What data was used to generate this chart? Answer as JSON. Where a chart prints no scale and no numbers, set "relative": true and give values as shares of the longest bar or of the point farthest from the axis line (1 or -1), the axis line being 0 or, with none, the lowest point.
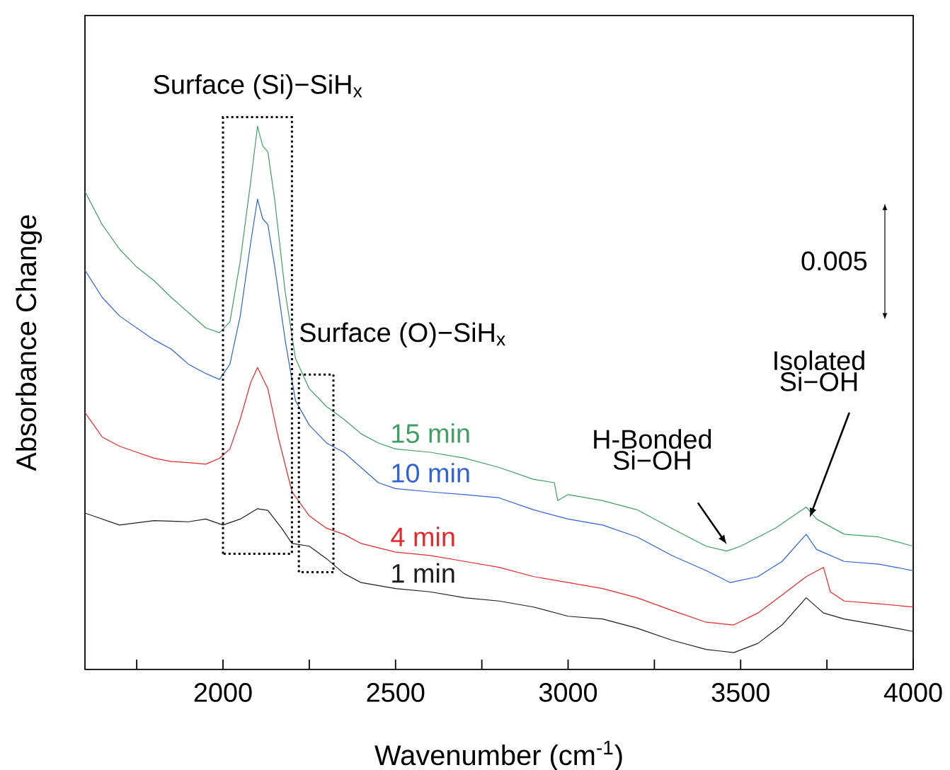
{
  "chart_data": {
    "type": "line",
    "relative": true,
    "xlabel": "Wavenumber (cm$^{-1}$)",
    "ylabel": "Absorbance Change",
    "xlim": [
      1600,
      4000
    ],
    "xticks": [
      {
        "value": 1750,
        "label": null
      },
      2000,
      {
        "value": 2250,
        "label": null
      },
      2500,
      {
        "value": 2750,
        "label": null
      },
      3000,
      {
        "value": 3250,
        "label": null
      },
      3500,
      {
        "value": 3750,
        "label": null
      },
      4000
    ],
    "tick_labels": "x",
    "series": [
      {
        "name": "15 min",
        "color": "#3f9f62",
        "x": [
          1600,
          1650,
          1700,
          1750,
          1800,
          1850,
          1900,
          1950,
          1990,
          2020,
          2050,
          2080,
          2100,
          2115,
          2130,
          2150,
          2180,
          2210,
          2250,
          2300,
          2350,
          2400,
          2450,
          2500,
          2600,
          2700,
          2800,
          2900,
          2960,
          2970,
          3000,
          3100,
          3200,
          3300,
          3400,
          3460,
          3500,
          3600,
          3690,
          3720,
          3800,
          3900,
          4000
        ],
        "values": [
          0.88,
          0.819,
          0.774,
          0.741,
          0.716,
          0.685,
          0.657,
          0.629,
          0.62,
          0.64,
          0.752,
          0.897,
          1.0,
          0.964,
          0.953,
          0.864,
          0.696,
          0.573,
          0.517,
          0.484,
          0.461,
          0.434,
          0.417,
          0.406,
          0.4,
          0.389,
          0.372,
          0.35,
          0.344,
          0.311,
          0.322,
          0.311,
          0.294,
          0.26,
          0.227,
          0.218,
          0.227,
          0.26,
          0.299,
          0.277,
          0.249,
          0.244,
          0.227
        ]
      },
      {
        "name": "10 min",
        "color": "#2f62d6",
        "x": [
          1600,
          1650,
          1700,
          1750,
          1800,
          1850,
          1900,
          1950,
          1990,
          2020,
          2050,
          2080,
          2100,
          2115,
          2130,
          2150,
          2180,
          2210,
          2250,
          2300,
          2350,
          2400,
          2450,
          2500,
          2600,
          2700,
          2800,
          2900,
          3000,
          3100,
          3200,
          3300,
          3400,
          3470,
          3550,
          3620,
          3690,
          3720,
          3800,
          3900,
          4000
        ],
        "values": [
          0.735,
          0.685,
          0.651,
          0.629,
          0.607,
          0.59,
          0.562,
          0.545,
          0.534,
          0.562,
          0.651,
          0.785,
          0.866,
          0.83,
          0.819,
          0.741,
          0.607,
          0.495,
          0.45,
          0.417,
          0.4,
          0.372,
          0.344,
          0.333,
          0.327,
          0.322,
          0.316,
          0.294,
          0.277,
          0.266,
          0.244,
          0.21,
          0.182,
          0.16,
          0.171,
          0.199,
          0.249,
          0.221,
          0.199,
          0.194,
          0.182
        ]
      },
      {
        "name": "4 min",
        "color": "#e8262b",
        "x": [
          1600,
          1650,
          1700,
          1750,
          1800,
          1850,
          1900,
          1950,
          1990,
          2020,
          2050,
          2080,
          2100,
          2130,
          2160,
          2200,
          2250,
          2300,
          2350,
          2400,
          2500,
          2600,
          2700,
          2800,
          2900,
          3000,
          3100,
          3200,
          3300,
          3400,
          3480,
          3550,
          3620,
          3690,
          3740,
          3760,
          3800,
          3900,
          4000
        ],
        "values": [
          0.473,
          0.428,
          0.411,
          0.4,
          0.389,
          0.383,
          0.381,
          0.378,
          0.389,
          0.406,
          0.461,
          0.528,
          0.556,
          0.517,
          0.428,
          0.327,
          0.283,
          0.26,
          0.249,
          0.232,
          0.216,
          0.21,
          0.199,
          0.188,
          0.171,
          0.16,
          0.149,
          0.132,
          0.109,
          0.087,
          0.082,
          0.104,
          0.137,
          0.171,
          0.188,
          0.143,
          0.126,
          0.121,
          0.115
        ]
      },
      {
        "name": "1 min",
        "color": "#1e1e1e",
        "x": [
          1600,
          1700,
          1800,
          1900,
          1950,
          2000,
          2050,
          2100,
          2130,
          2170,
          2200,
          2250,
          2300,
          2350,
          2400,
          2500,
          2600,
          2700,
          2800,
          2900,
          3000,
          3100,
          3200,
          3300,
          3400,
          3480,
          3550,
          3620,
          3690,
          3740,
          3800,
          3900,
          4000
        ],
        "values": [
          0.288,
          0.266,
          0.274,
          0.272,
          0.277,
          0.266,
          0.277,
          0.296,
          0.293,
          0.26,
          0.232,
          0.227,
          0.204,
          0.177,
          0.16,
          0.149,
          0.143,
          0.132,
          0.126,
          0.115,
          0.098,
          0.093,
          0.076,
          0.054,
          0.037,
          0.031,
          0.048,
          0.082,
          0.132,
          0.104,
          0.093,
          0.082,
          0.07
        ]
      }
    ],
    "annotations": [
      {
        "text": "Surface (Si)−SiH$_{x}$",
        "x": 2100,
        "y": 1.0
      },
      {
        "text": "Surface (O)−SiH$_{x}$",
        "x": 2270,
        "y": 0.5
      },
      {
        "text": "H-Bonded Si−OH",
        "x": 3460,
        "y": 0.23
      },
      {
        "text": "Isolated Si−OH",
        "x": 3700,
        "y": 0.28
      },
      "0.005"
    ]
  }
}
